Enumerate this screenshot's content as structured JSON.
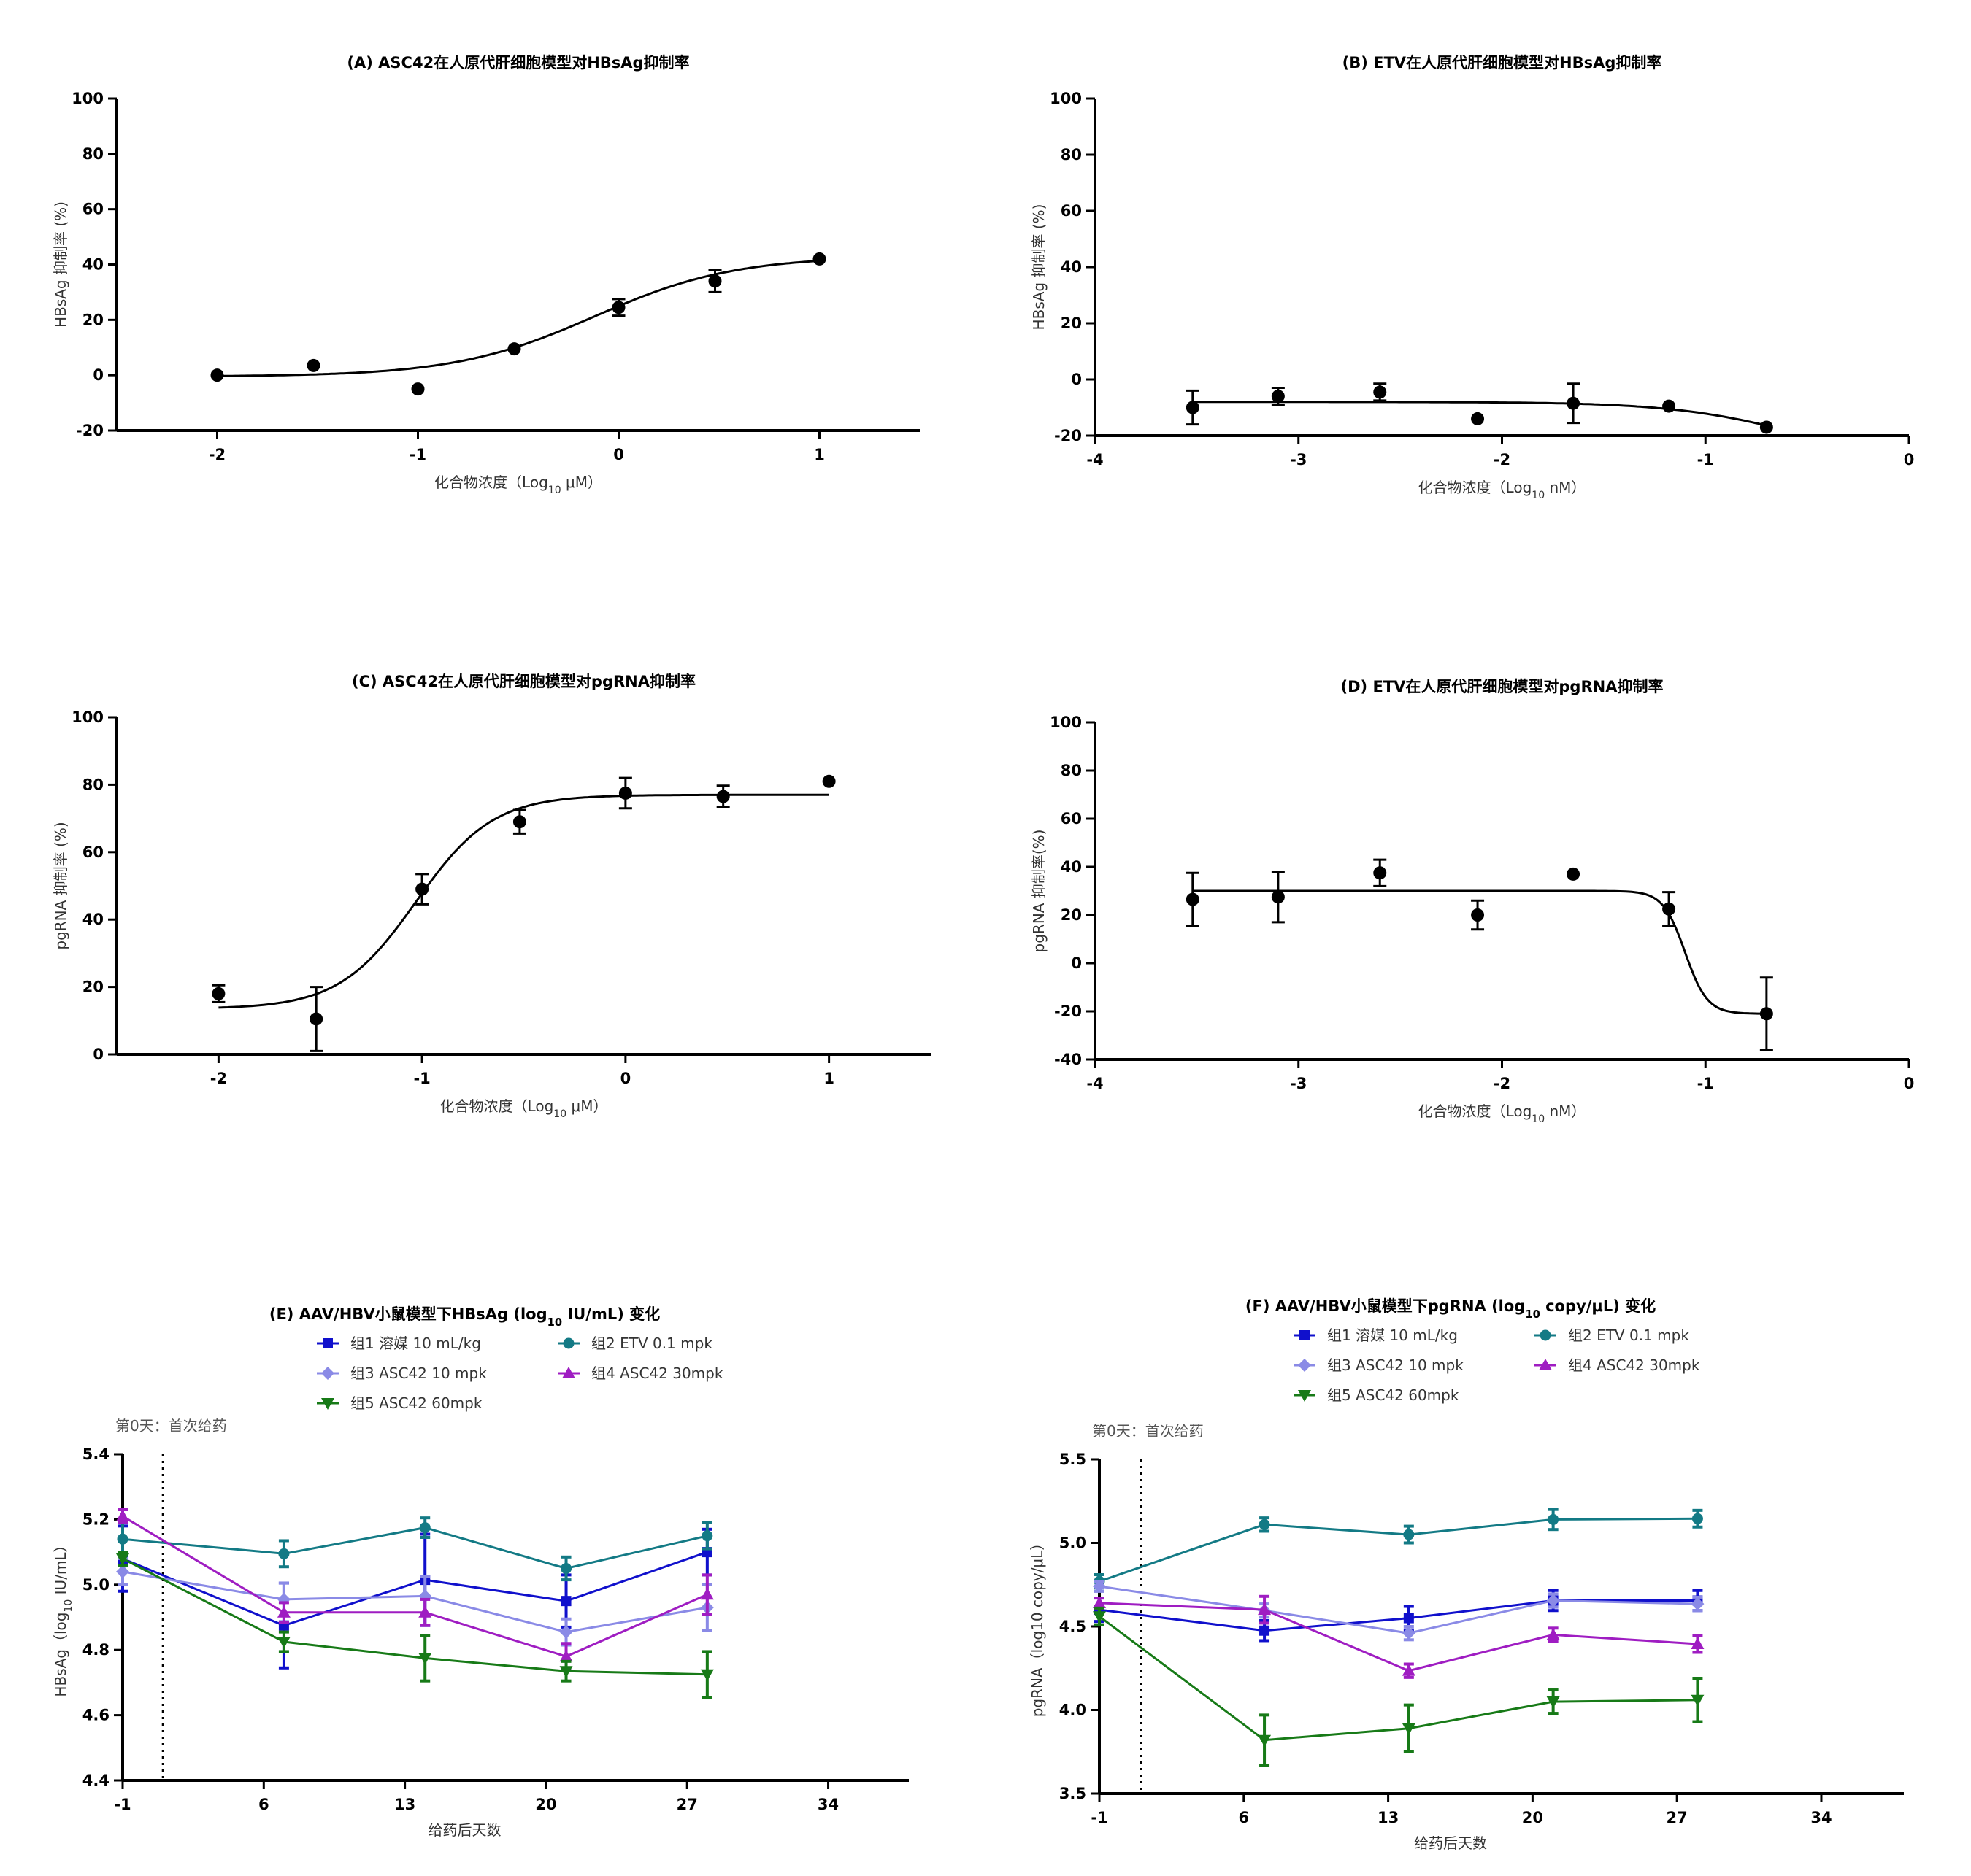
{
  "chart_data": [
    {
      "id": "A",
      "type": "scatter",
      "title": "(A)  ASC42在人原代肝细胞模型对HBsAg抑制率",
      "xlabel": "化合物浓度（Log",
      "xlabel_sub": "10",
      "xlabel_tail": " μM）",
      "ylabel": "HBsAg 抑制率 (%)",
      "xlim": [
        -2.5,
        1.5
      ],
      "ylim": [
        -20,
        100
      ],
      "xticks": [
        -2,
        -1,
        0,
        1
      ],
      "yticks": [
        -20,
        0,
        20,
        40,
        60,
        80,
        100
      ],
      "xtick_labels": [
        "-2",
        "-1",
        "0",
        "1"
      ],
      "ytick_labels": [
        "-20",
        "0",
        "20",
        "40",
        "60",
        "80",
        "100"
      ],
      "points": [
        {
          "x": -2.0,
          "y": 0,
          "err": 0
        },
        {
          "x": -1.52,
          "y": 3.5,
          "err": 0
        },
        {
          "x": -1.0,
          "y": -5,
          "err": 0
        },
        {
          "x": -0.52,
          "y": 9.5,
          "err": 0
        },
        {
          "x": 0.0,
          "y": 24.5,
          "err": 3
        },
        {
          "x": 0.48,
          "y": 34,
          "err": 4
        },
        {
          "x": 1.0,
          "y": 42,
          "err": 0
        }
      ],
      "curve": {
        "bottom": -0.5,
        "top": 43,
        "logEC50": -0.12,
        "hill": 1.25,
        "xrange": [
          -2.0,
          1.0
        ]
      }
    },
    {
      "id": "B",
      "type": "scatter",
      "title": "(B)  ETV在人原代肝细胞模型对HBsAg抑制率",
      "xlabel": "化合物浓度（Log",
      "xlabel_sub": "10",
      "xlabel_tail": " nM）",
      "ylabel": "HBsAg 抑制率 (%)",
      "xlim": [
        -4,
        0
      ],
      "ylim": [
        -20,
        100
      ],
      "xticks": [
        -4,
        -3,
        -2,
        -1,
        0
      ],
      "yticks": [
        -20,
        0,
        20,
        40,
        60,
        80,
        100
      ],
      "xtick_labels": [
        "-4",
        "-3",
        "-2",
        "-1",
        "0"
      ],
      "ytick_labels": [
        "-20",
        "0",
        "20",
        "40",
        "60",
        "80",
        "100"
      ],
      "points": [
        {
          "x": -3.52,
          "y": -10,
          "err": 6
        },
        {
          "x": -3.1,
          "y": -6,
          "err": 3
        },
        {
          "x": -2.6,
          "y": -4.5,
          "err": 3
        },
        {
          "x": -2.12,
          "y": -14,
          "err": 0
        },
        {
          "x": -1.65,
          "y": -8.5,
          "err": 7
        },
        {
          "x": -1.18,
          "y": -9.5,
          "err": 0
        },
        {
          "x": -0.7,
          "y": -17,
          "err": 0
        }
      ],
      "curve": {
        "bottom": -8,
        "top": -30,
        "logEC50": -0.55,
        "hill": 1.4,
        "xrange": [
          -3.52,
          -0.7
        ]
      }
    },
    {
      "id": "C",
      "type": "scatter",
      "title": "(C)  ASC42在人原代肝细胞模型对pgRNA抑制率",
      "xlabel": "化合物浓度（Log",
      "xlabel_sub": "10",
      "xlabel_tail": " μM）",
      "ylabel": "pgRNA 抑制率 (%)",
      "xlim": [
        -2.5,
        1.5
      ],
      "ylim": [
        0,
        100
      ],
      "xticks": [
        -2,
        -1,
        0,
        1
      ],
      "yticks": [
        0,
        20,
        40,
        60,
        80,
        100
      ],
      "xtick_labels": [
        "-2",
        "-1",
        "0",
        "1"
      ],
      "ytick_labels": [
        "0",
        "20",
        "40",
        "60",
        "80",
        "100"
      ],
      "points": [
        {
          "x": -2.0,
          "y": 18,
          "err": 2.5
        },
        {
          "x": -1.52,
          "y": 10.5,
          "err": 9.5
        },
        {
          "x": -1.0,
          "y": 49,
          "err": 4.5
        },
        {
          "x": -0.52,
          "y": 69,
          "err": 3.5
        },
        {
          "x": 0.0,
          "y": 77.5,
          "err": 4.5
        },
        {
          "x": 0.48,
          "y": 76.5,
          "err": 3.2
        },
        {
          "x": 1.0,
          "y": 81,
          "err": 0
        }
      ],
      "curve": {
        "bottom": 13.5,
        "top": 77,
        "logEC50": -1.03,
        "hill": 2.3,
        "xrange": [
          -2.0,
          1.0
        ]
      }
    },
    {
      "id": "D",
      "type": "scatter",
      "title": "(D)  ETV在人原代肝细胞模型对pgRNA抑制率",
      "xlabel": "化合物浓度（Log",
      "xlabel_sub": "10",
      "xlabel_tail": " nM）",
      "ylabel": "pgRNA 抑制率(%)",
      "xlim": [
        -4,
        0
      ],
      "ylim": [
        -40,
        100
      ],
      "xticks": [
        -4,
        -3,
        -2,
        -1,
        0
      ],
      "yticks": [
        -40,
        -20,
        0,
        20,
        40,
        60,
        80,
        100
      ],
      "xtick_labels": [
        "-4",
        "-3",
        "-2",
        "-1",
        "0"
      ],
      "ytick_labels": [
        "-40",
        "-20",
        "0",
        "20",
        "40",
        "60",
        "80",
        "100"
      ],
      "points": [
        {
          "x": -3.52,
          "y": 26.5,
          "err": 11
        },
        {
          "x": -3.1,
          "y": 27.5,
          "err": 10.5
        },
        {
          "x": -2.6,
          "y": 37.5,
          "err": 5.5
        },
        {
          "x": -2.12,
          "y": 20,
          "err": 6
        },
        {
          "x": -1.65,
          "y": 37,
          "err": 0
        },
        {
          "x": -1.18,
          "y": 22.5,
          "err": 7
        },
        {
          "x": -0.7,
          "y": -21,
          "err": 15
        }
      ],
      "curve": {
        "bottom": 30,
        "top": -21,
        "logEC50": -1.1,
        "hill": 8,
        "xrange": [
          -3.52,
          -0.7
        ]
      }
    },
    {
      "id": "E",
      "type": "line",
      "title": "(E)  AAV/HBV小鼠模型下HBsAg (log",
      "title_sub": "10",
      "title_tail": " IU/mL) 变化",
      "xlabel": "给药后天数",
      "ylabel": "HBsAg（log",
      "ylabel_sub": "10",
      "ylabel_tail": " IU/mL）",
      "annotation": "第0天：首次给药",
      "dose_day": 1,
      "xlim": [
        -1,
        38
      ],
      "ylim": [
        4.4,
        5.4
      ],
      "xticks": [
        -1,
        6,
        13,
        20,
        27,
        34
      ],
      "yticks": [
        4.4,
        4.6,
        4.8,
        5.0,
        5.2,
        5.4
      ],
      "xtick_labels": [
        "-1",
        "6",
        "13",
        "20",
        "27",
        "34"
      ],
      "ytick_labels": [
        "4.4",
        "4.6",
        "4.8",
        "5.0",
        "5.2",
        "5.4"
      ],
      "x": [
        -1,
        7,
        14,
        21,
        28
      ],
      "series": [
        {
          "name": "组1 溶媒 10 mL/kg",
          "color": "#1010cc",
          "marker": "square",
          "values": [
            5.08,
            4.875,
            5.015,
            4.95,
            5.1
          ],
          "errors": [
            0.1,
            0.13,
            0.14,
            0.08,
            0.07
          ]
        },
        {
          "name": "组2 ETV 0.1 mpk",
          "color": "#137a85",
          "marker": "circle",
          "values": [
            5.14,
            5.095,
            5.175,
            5.05,
            5.15
          ],
          "errors": [
            0.05,
            0.04,
            0.03,
            0.035,
            0.04
          ]
        },
        {
          "name": "组3 ASC42 10 mpk",
          "color": "#8a8ae6",
          "marker": "diamond",
          "values": [
            5.04,
            4.955,
            4.965,
            4.855,
            4.93
          ],
          "errors": [
            0.04,
            0.05,
            0.06,
            0.04,
            0.07
          ]
        },
        {
          "name": "组4 ASC42 30mpk",
          "color": "#9f1dc2",
          "marker": "triangle",
          "values": [
            5.21,
            4.915,
            4.915,
            4.78,
            4.97
          ],
          "errors": [
            0.02,
            0.03,
            0.04,
            0.04,
            0.06
          ]
        },
        {
          "name": "组5 ASC42 60mpk",
          "color": "#177a17",
          "marker": "triangle-down",
          "values": [
            5.08,
            4.825,
            4.775,
            4.735,
            4.725
          ],
          "errors": [
            0.02,
            0.03,
            0.07,
            0.03,
            0.07
          ]
        }
      ]
    },
    {
      "id": "F",
      "type": "line",
      "title": "(F)  AAV/HBV小鼠模型下pgRNA (log",
      "title_sub": "10",
      "title_tail": " copy/μL) 变化",
      "xlabel": "给药后天数",
      "ylabel": "pgRNA（log10 copy/μL）",
      "annotation": "第0天：首次给药",
      "dose_day": 1,
      "xlim": [
        -1,
        38
      ],
      "ylim": [
        3.5,
        5.5
      ],
      "xticks": [
        -1,
        6,
        13,
        20,
        27,
        34
      ],
      "yticks": [
        3.5,
        4.0,
        4.5,
        5.0,
        5.5
      ],
      "xtick_labels": [
        "-1",
        "6",
        "13",
        "20",
        "27",
        "34"
      ],
      "ytick_labels": [
        "3.5",
        "4.0",
        "4.5",
        "5.0",
        "5.5"
      ],
      "x": [
        -1,
        7,
        14,
        21,
        28
      ],
      "series": [
        {
          "name": "组1 溶媒 10 mL/kg",
          "color": "#1010cc",
          "marker": "square",
          "values": [
            4.6,
            4.475,
            4.55,
            4.655,
            4.655
          ],
          "errors": [
            0.07,
            0.06,
            0.07,
            0.06,
            0.06
          ]
        },
        {
          "name": "组2 ETV 0.1 mpk",
          "color": "#137a85",
          "marker": "circle",
          "values": [
            4.77,
            5.11,
            5.05,
            5.14,
            5.145
          ],
          "errors": [
            0.04,
            0.04,
            0.05,
            0.06,
            0.05
          ]
        },
        {
          "name": "组3 ASC42 10 mpk",
          "color": "#8a8ae6",
          "marker": "diamond",
          "values": [
            4.74,
            4.595,
            4.46,
            4.655,
            4.635
          ],
          "errors": [
            0.03,
            0.04,
            0.04,
            0.04,
            0.04
          ]
        },
        {
          "name": "组4 ASC42 30mpk",
          "color": "#9f1dc2",
          "marker": "triangle",
          "values": [
            4.64,
            4.6,
            4.235,
            4.45,
            4.395
          ],
          "errors": [
            0.03,
            0.08,
            0.04,
            0.04,
            0.05
          ]
        },
        {
          "name": "组5 ASC42 60mpk",
          "color": "#177a17",
          "marker": "triangle-down",
          "values": [
            4.56,
            3.82,
            3.89,
            4.05,
            4.06
          ],
          "errors": [
            0.05,
            0.15,
            0.14,
            0.07,
            0.13
          ]
        }
      ]
    }
  ]
}
